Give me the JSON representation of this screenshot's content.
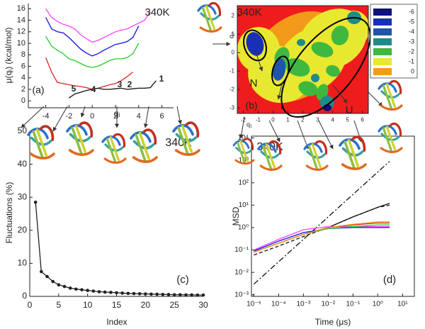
{
  "chart_data": [
    {
      "type": "line",
      "ylabel": "μ(qᵢ) (kcal/mol)",
      "xlabel": "qᵢ",
      "annotations": [
        "340K",
        "(a)",
        "1",
        "2",
        "3",
        "4",
        "5"
      ],
      "x": [
        -4,
        -3.5,
        -3,
        -2.5,
        -2,
        -1.5,
        -1,
        -0.5,
        0,
        0.5,
        1,
        1.5,
        2,
        2.5,
        3,
        3.5,
        4,
        4.5,
        5,
        5.5,
        6
      ],
      "xlim": [
        -5.5,
        7
      ],
      "xticks": [
        -4,
        -2,
        0,
        2,
        4,
        6
      ],
      "ylim": [
        -1.2,
        16.9
      ],
      "yticks": [
        0,
        2,
        4,
        6,
        8,
        10,
        12,
        14,
        16
      ],
      "series": [
        {
          "color": "#ff40ff",
          "values": [
            16,
            14.5,
            13.8,
            13.3,
            13,
            12.5,
            11.5,
            10.8,
            10.2,
            10.5,
            11,
            11.5,
            12,
            12.3,
            12.5,
            13,
            13.5,
            14,
            15.5,
            null,
            null
          ]
        },
        {
          "color": "#1010e0",
          "values": [
            14.5,
            12.5,
            12,
            11.8,
            11,
            10,
            9,
            8.3,
            7.8,
            8.2,
            8.8,
            9.3,
            9.8,
            10,
            10.3,
            11,
            13,
            null,
            null,
            null,
            null
          ]
        },
        {
          "color": "#20d020",
          "values": [
            11.2,
            9.5,
            8.8,
            8.2,
            7.3,
            7,
            6.5,
            6,
            5.8,
            6,
            6.5,
            7,
            7.3,
            7.3,
            7.5,
            8.2,
            10,
            null,
            null,
            null,
            null
          ]
        },
        {
          "color": "#e02020",
          "values": [
            7.5,
            5,
            3.2,
            3,
            2.8,
            2.6,
            2.5,
            2.3,
            2,
            2.2,
            2.5,
            2.8,
            3,
            3.5,
            4.2,
            5,
            null,
            null,
            null,
            null,
            null
          ]
        },
        {
          "color": "#111111",
          "values": [
            null,
            null,
            null,
            null,
            0.5,
            1.2,
            1.5,
            1.8,
            2,
            2.2,
            2,
            2,
            2.1,
            2.2,
            2,
            2.1,
            2.2,
            2.2,
            2.3,
            3.5,
            null
          ]
        }
      ]
    },
    {
      "type": "contour",
      "xlabel": "q₁",
      "ylabel": "q₂",
      "annotations": [
        "340K",
        "(b)",
        "N",
        "I",
        "U"
      ],
      "xlim": [
        -2.4,
        6.4
      ],
      "xticks": [
        -2,
        -1,
        0,
        1,
        2,
        3,
        4,
        5,
        6
      ],
      "ylim": [
        -3.3,
        2.55
      ],
      "yticks": [
        -3,
        -2,
        -1,
        0,
        1,
        2
      ],
      "levels": [
        -6,
        -5,
        -4,
        -3,
        -2,
        -1,
        0
      ],
      "level_colors": [
        "#10107a",
        "#1a2fb8",
        "#1f55a8",
        "#1f8a8a",
        "#3fb83f",
        "#e8e830",
        "#f39a1a"
      ],
      "background": "#ee1c1c"
    },
    {
      "type": "line-marker",
      "xlabel": "Index",
      "ylabel": "Fluctuations (%)",
      "annotations": [
        "340K",
        "(c)"
      ],
      "x": [
        1,
        2,
        3,
        4,
        5,
        6,
        7,
        8,
        9,
        10,
        11,
        12,
        13,
        14,
        15,
        16,
        17,
        18,
        19,
        20,
        21,
        22,
        23,
        24,
        25,
        26,
        27,
        28,
        29,
        30
      ],
      "values": [
        28.5,
        7.5,
        6,
        4.5,
        3.5,
        3,
        2.5,
        2.2,
        2,
        1.8,
        1.6,
        1.4,
        1.3,
        1.2,
        1.1,
        1,
        0.9,
        0.85,
        0.8,
        0.75,
        0.7,
        0.65,
        0.6,
        0.55,
        0.5,
        0.5,
        0.45,
        0.45,
        0.4,
        0.4
      ],
      "color": "#222222",
      "xlim": [
        0,
        30
      ],
      "xticks": [
        0,
        5,
        10,
        15,
        20,
        25,
        30
      ],
      "ylim": [
        0,
        50
      ],
      "yticks": [
        0,
        10,
        20,
        30,
        40,
        50
      ]
    },
    {
      "type": "loglog",
      "xlabel": "Time (μs)",
      "ylabel": "MSD",
      "annotations": [
        "340K",
        "(d)"
      ],
      "x": [
        1e-05,
        0.0001,
        0.001,
        0.01,
        0.1,
        1,
        3
      ],
      "xlim": [
        8e-06,
        30
      ],
      "xticks": [
        {
          "value": 1e-05,
          "label": "10⁻⁵"
        },
        {
          "value": 0.0001,
          "label": "10⁻⁴"
        },
        {
          "value": 0.001,
          "label": "10⁻³"
        },
        {
          "value": 0.01,
          "label": "10⁻²"
        },
        {
          "value": 0.1,
          "label": "10⁻¹"
        },
        {
          "value": 1,
          "label": "10⁰"
        },
        {
          "value": 10,
          "label": "10¹"
        }
      ],
      "ylim": [
        0.00085,
        12000
      ],
      "yticks": [
        {
          "value": 0.001,
          "label": "10⁻³"
        },
        {
          "value": 0.01,
          "label": "10⁻²"
        },
        {
          "value": 0.1,
          "label": "10⁻¹"
        },
        {
          "value": 1,
          "label": "10⁰"
        },
        {
          "value": 10,
          "label": "10¹"
        },
        {
          "value": 100,
          "label": "10²"
        },
        {
          "value": 1000,
          "label": "10³"
        },
        {
          "value": 10000,
          "label": "10⁴"
        }
      ],
      "series": [
        {
          "color": "#111111",
          "dash": "dashdot",
          "values": [
            0.003,
            0.03,
            0.3,
            3,
            30,
            300,
            900
          ]
        },
        {
          "color": "#111111",
          "dash": "dash",
          "values": [
            0.06,
            0.15,
            0.4,
            1,
            3,
            8,
            10
          ]
        },
        {
          "color": "#111111",
          "values": [
            0.08,
            0.2,
            0.5,
            1,
            3,
            8,
            12
          ]
        },
        {
          "color": "#ff40ff",
          "values": [
            0.1,
            0.3,
            0.8,
            1.1,
            1.1,
            1.1,
            1.1
          ]
        },
        {
          "color": "#1010e0",
          "values": [
            0.09,
            0.25,
            0.6,
            0.9,
            1,
            1,
            1
          ]
        },
        {
          "color": "#20d020",
          "values": [
            0.08,
            0.2,
            0.5,
            0.9,
            1.1,
            1.3,
            1.3
          ]
        },
        {
          "color": "#e02020",
          "values": [
            0.08,
            0.2,
            0.5,
            1,
            1.3,
            1.6,
            1.6
          ]
        },
        {
          "color": "#f39a1a",
          "values": [
            0.08,
            0.2,
            0.5,
            1,
            1.4,
            1.8,
            1.8
          ]
        }
      ]
    }
  ]
}
